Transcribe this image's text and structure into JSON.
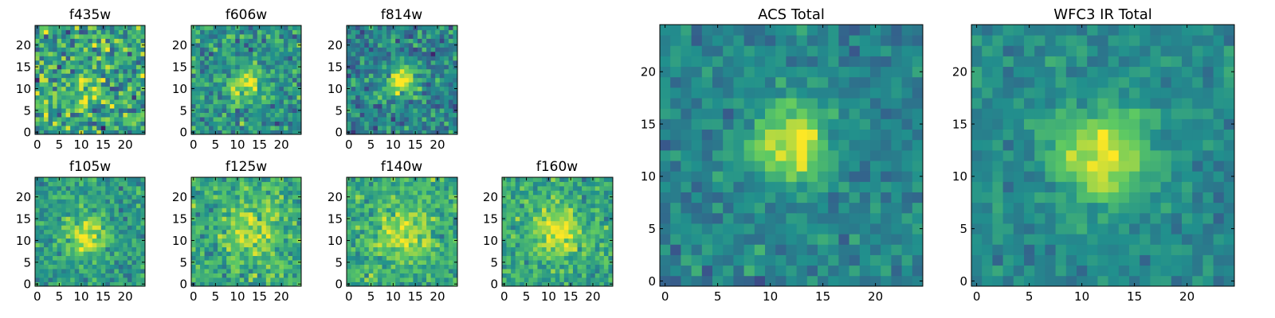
{
  "figure": {
    "panels": [
      {
        "id": "f435w",
        "title": "f435w",
        "size": 24,
        "center": [
          11,
          11
        ],
        "signal": 0.18,
        "sigma": 3.0,
        "noise": 0.32,
        "bg": 0.58,
        "seed": 11,
        "xticks": [
          "0",
          "5",
          "10",
          "15",
          "20"
        ],
        "yticks": [
          "0",
          "5",
          "10",
          "15",
          "20"
        ]
      },
      {
        "id": "f606w",
        "title": "f606w",
        "size": 24,
        "center": [
          12,
          11
        ],
        "signal": 0.38,
        "sigma": 2.6,
        "noise": 0.22,
        "bg": 0.52,
        "seed": 23,
        "xticks": [
          "0",
          "5",
          "10",
          "15",
          "20"
        ],
        "yticks": [
          "0",
          "5",
          "10",
          "15",
          "20"
        ]
      },
      {
        "id": "f814w",
        "title": "f814w",
        "size": 24,
        "center": [
          12,
          12
        ],
        "signal": 0.55,
        "sigma": 2.4,
        "noise": 0.22,
        "bg": 0.45,
        "seed": 37,
        "xticks": [
          "0",
          "5",
          "10",
          "15",
          "20"
        ],
        "yticks": [
          "0",
          "5",
          "10",
          "15",
          "20"
        ]
      },
      {
        "id": "f105w",
        "title": "f105w",
        "size": 24,
        "center": [
          11,
          11
        ],
        "signal": 0.42,
        "sigma": 3.0,
        "noise": 0.17,
        "bg": 0.55,
        "seed": 41,
        "xticks": [
          "0",
          "5",
          "10",
          "15",
          "20"
        ],
        "yticks": [
          "0",
          "5",
          "10",
          "15",
          "20"
        ]
      },
      {
        "id": "f125w",
        "title": "f125w",
        "size": 24,
        "center": [
          13,
          12
        ],
        "signal": 0.3,
        "sigma": 3.6,
        "noise": 0.2,
        "bg": 0.62,
        "seed": 53,
        "xticks": [
          "0",
          "5",
          "10",
          "15",
          "20"
        ],
        "yticks": [
          "0",
          "5",
          "10",
          "15",
          "20"
        ]
      },
      {
        "id": "f140w",
        "title": "f140w",
        "size": 24,
        "center": [
          12,
          12
        ],
        "signal": 0.3,
        "sigma": 4.2,
        "noise": 0.18,
        "bg": 0.62,
        "seed": 67,
        "xticks": [
          "0",
          "5",
          "10",
          "15",
          "20"
        ],
        "yticks": [
          "0",
          "5",
          "10",
          "15",
          "20"
        ]
      },
      {
        "id": "f160w",
        "title": "f160w",
        "size": 24,
        "center": [
          12,
          12
        ],
        "signal": 0.36,
        "sigma": 3.8,
        "noise": 0.18,
        "bg": 0.6,
        "seed": 79,
        "xticks": [
          "0",
          "5",
          "10",
          "15",
          "20"
        ],
        "yticks": [
          "0",
          "5",
          "10",
          "15",
          "20"
        ]
      },
      {
        "id": "acs-total",
        "title": "ACS Total",
        "size": 24,
        "center": [
          12,
          13
        ],
        "signal": 0.55,
        "sigma": 2.4,
        "noise": 0.13,
        "bg": 0.45,
        "seed": 97,
        "xticks": [
          "0",
          "5",
          "10",
          "15",
          "20"
        ],
        "yticks": [
          "0",
          "5",
          "10",
          "15",
          "20"
        ]
      },
      {
        "id": "wfc3-ir-total",
        "title": "WFC3 IR Total",
        "size": 24,
        "center": [
          12,
          12
        ],
        "signal": 0.48,
        "sigma": 3.2,
        "noise": 0.11,
        "bg": 0.47,
        "seed": 131,
        "xticks": [
          "0",
          "5",
          "10",
          "15",
          "20"
        ],
        "yticks": [
          "0",
          "5",
          "10",
          "15",
          "20"
        ]
      }
    ],
    "colormap": [
      "#440154",
      "#3b528b",
      "#21908d",
      "#5dc963",
      "#fde725"
    ]
  }
}
